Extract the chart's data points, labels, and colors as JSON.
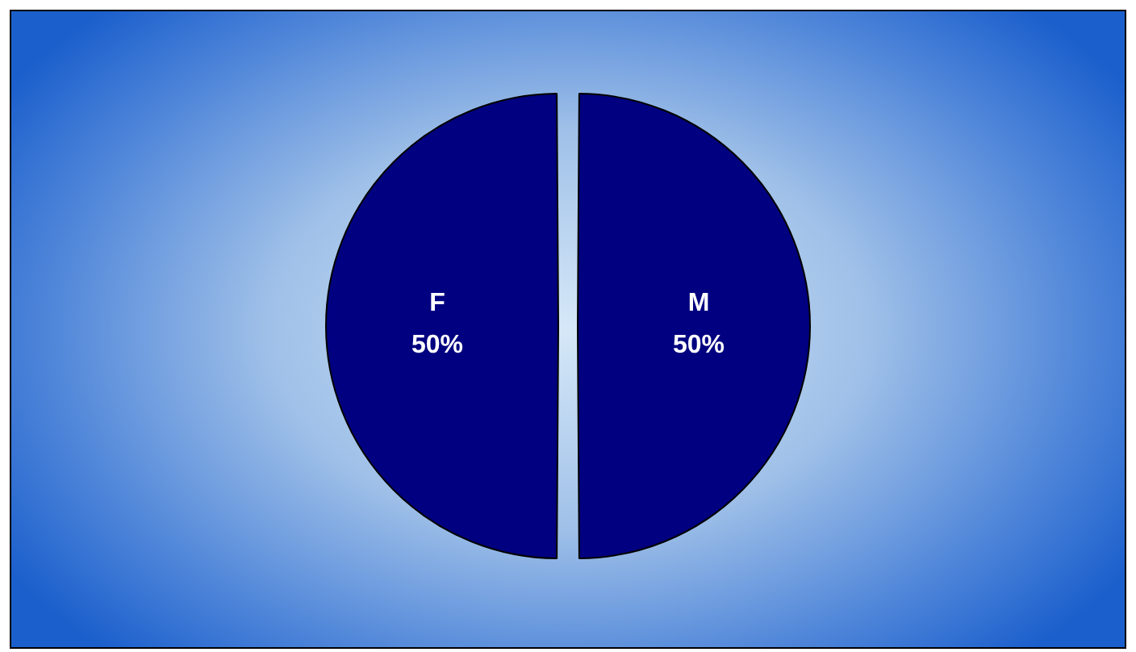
{
  "chart_data": {
    "type": "pie",
    "categories": [
      "M",
      "F"
    ],
    "values": [
      50,
      50
    ],
    "colors": [
      "#000080",
      "#000080"
    ],
    "value_labels": [
      "50%",
      "50%"
    ],
    "legend": false
  }
}
